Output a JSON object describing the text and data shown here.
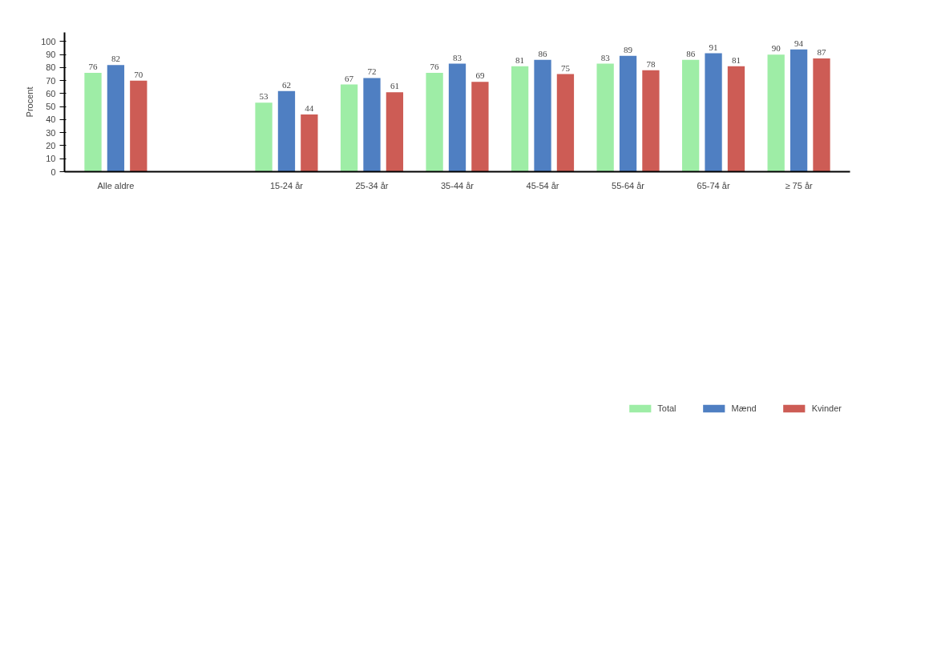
{
  "chart_data": {
    "type": "bar",
    "ylabel": "Procent",
    "categories": [
      "Alle aldre",
      null,
      "15-24 år",
      "25-34 år",
      "35-44 år",
      "45-54 år",
      "55-64 år",
      "65-74 år",
      "≥ 75 år"
    ],
    "series": [
      {
        "name": "Total",
        "color": "#9eeda6",
        "values": [
          76,
          null,
          53,
          67,
          76,
          81,
          83,
          86,
          90
        ]
      },
      {
        "name": "Mænd",
        "color": "#4f7fc2",
        "values": [
          82,
          null,
          62,
          72,
          83,
          86,
          89,
          91,
          94
        ]
      },
      {
        "name": "Kvinder",
        "color": "#cd5c55",
        "values": [
          70,
          null,
          44,
          61,
          69,
          75,
          78,
          81,
          87
        ]
      }
    ],
    "ylim": [
      0,
      107
    ],
    "yticks": [
      0,
      10,
      20,
      30,
      40,
      50,
      60,
      70,
      80,
      90,
      100
    ],
    "grid": false,
    "legend": "bottom",
    "data_labels": true
  }
}
